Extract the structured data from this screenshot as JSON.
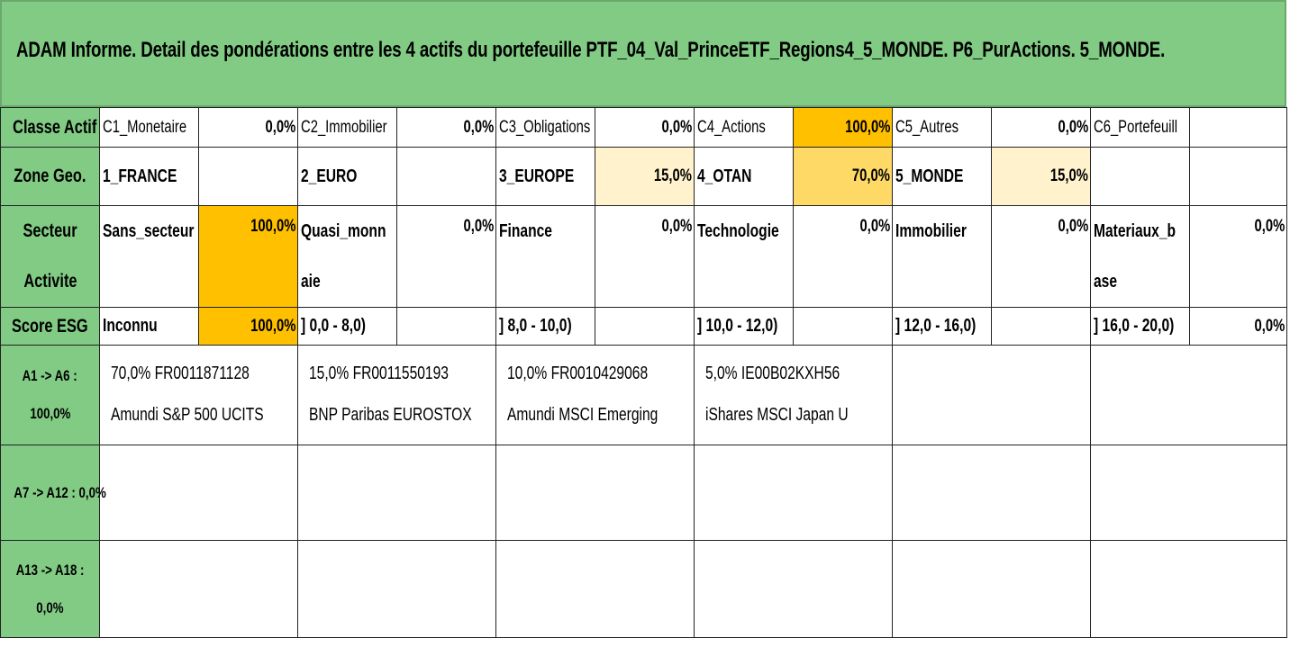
{
  "title": "ADAM Informe. Detail des pondérations entre les 4 actifs du portefeuille PTF_04_Val_PrinceETF_Regions4_5_MONDE. P6_PurActions. 5_MONDE.",
  "colors": {
    "header_green": "#82cb84",
    "highlight_strong": "#ffc000",
    "highlight_mid": "#ffd966",
    "highlight_light": "#fff2cc"
  },
  "rows": {
    "classe_actif": {
      "header": "Classe Actif",
      "cells": [
        {
          "label": "C1_Monetaire",
          "value": "0,0%"
        },
        {
          "label": "C2_Immobilier",
          "value": "0,0%"
        },
        {
          "label": "C3_Obligations",
          "value": "0,0%"
        },
        {
          "label": "C4_Actions",
          "value": "100,0%"
        },
        {
          "label": "C5_Autres",
          "value": "0,0%"
        },
        {
          "label": "C6_Portefeuill",
          "value": ""
        }
      ]
    },
    "zone_geo": {
      "header": "Zone Geo.",
      "cells": [
        {
          "label": "1_FRANCE",
          "value": ""
        },
        {
          "label": "2_EURO",
          "value": ""
        },
        {
          "label": "3_EUROPE",
          "value": "15,0%"
        },
        {
          "label": "4_OTAN",
          "value": "70,0%"
        },
        {
          "label": "5_MONDE",
          "value": "15,0%"
        },
        {
          "label": "",
          "value": ""
        }
      ]
    },
    "secteur": {
      "header_line1": "Secteur",
      "header_line2": "Activite",
      "cells": [
        {
          "label_line1": "Sans_secteur",
          "label_line2": "",
          "value": "100,0%"
        },
        {
          "label_line1": "Quasi_monn",
          "label_line2": "aie",
          "value": "0,0%"
        },
        {
          "label_line1": "Finance",
          "label_line2": "",
          "value": "0,0%"
        },
        {
          "label_line1": "Technologie",
          "label_line2": "",
          "value": "0,0%"
        },
        {
          "label_line1": "Immobilier",
          "label_line2": "",
          "value": "0,0%"
        },
        {
          "label_line1": "Materiaux_b",
          "label_line2": "ase",
          "value": "0,0%"
        }
      ]
    },
    "score_esg": {
      "header": "Score ESG",
      "cells": [
        {
          "label": "Inconnu",
          "value": "100,0%"
        },
        {
          "label": "] 0,0 - 8,0)",
          "value": ""
        },
        {
          "label": "] 8,0 - 10,0)",
          "value": ""
        },
        {
          "label": "] 10,0 - 12,0)",
          "value": ""
        },
        {
          "label": "] 12,0 - 16,0)",
          "value": ""
        },
        {
          "label": "] 16,0 - 20,0)",
          "value": "0,0%"
        }
      ]
    }
  },
  "asset_groups": [
    {
      "header_line1": "A1 -> A6 :",
      "header_line2": "100,0%",
      "assets": [
        {
          "line1": "70,0% FR0011871128",
          "line2": "Amundi S&P 500 UCITS"
        },
        {
          "line1": "15,0% FR0011550193",
          "line2": "BNP Paribas EUROSTOX"
        },
        {
          "line1": "10,0% FR0010429068",
          "line2": "Amundi MSCI Emerging"
        },
        {
          "line1": "5,0% IE00B02KXH56",
          "line2": "iShares MSCI Japan U"
        },
        {
          "line1": "",
          "line2": ""
        },
        {
          "line1": "",
          "line2": ""
        }
      ]
    },
    {
      "header_line1": "A7 -> A12 : 0,0%",
      "header_line2": "",
      "assets": []
    },
    {
      "header_line1": "A13 -> A18 :",
      "header_line2": "0,0%",
      "assets": []
    }
  ]
}
